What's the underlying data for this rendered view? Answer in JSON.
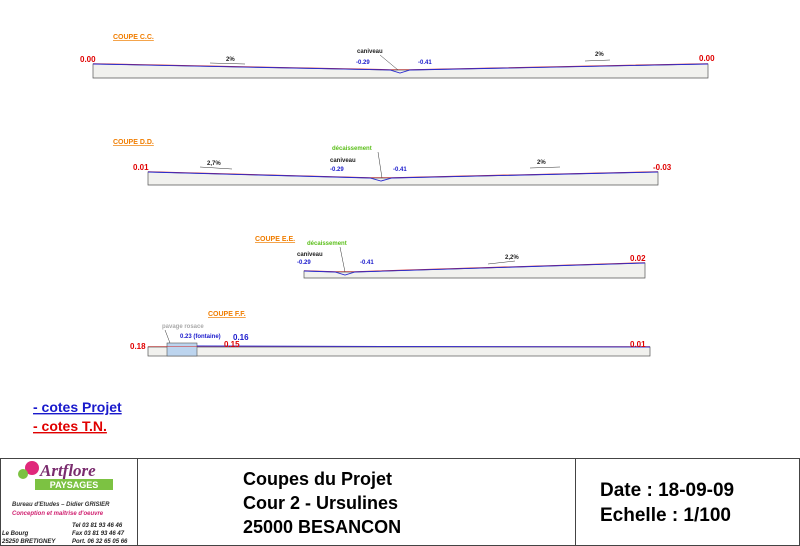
{
  "sections": [
    {
      "title": "COUPE C.C.",
      "left_level": "0.00",
      "right_level": "0.00",
      "slope_left": "2%",
      "slope_right": "2%",
      "caniveau": "caniveau",
      "caniveau_left": "-0.29",
      "caniveau_right": "-0.41"
    },
    {
      "title": "COUPE D.D.",
      "left_level": "0.01",
      "right_level": "-0.03",
      "slope_left": "2,7%",
      "slope_right": "2%",
      "decaissement": "décaissement",
      "caniveau": "caniveau",
      "caniveau_left": "-0.29",
      "caniveau_right": "-0.41"
    },
    {
      "title": "COUPE E.E.",
      "decaissement": "décaissement",
      "caniveau": "caniveau",
      "caniveau_left": "-0.29",
      "caniveau_right": "-0.41",
      "slope_right": "2,2%",
      "right_level": "0.02"
    },
    {
      "title": "COUPE F.F.",
      "pavage": "pavage rosace",
      "fontaine": "0.23 (fontaine)",
      "fontaine_tn": "0.16",
      "left_level": "0.18",
      "left_level_2": "0.15",
      "right_level": "0.01"
    }
  ],
  "legend": {
    "projet": "- cotes Projet",
    "tn": "- cotes T.N."
  },
  "title_block": {
    "logo_name": "Artflore",
    "logo_sub": "PAYSAGES",
    "office": "Bureau d'Etudes – Didier GRISIER",
    "role": "Conception et maîtrise d'oeuvre",
    "tel": "Tel 03 81 93 46 46",
    "fax": "Fax 03 81 93 46 47",
    "port": "Port. 06 32 65 05 66",
    "address_1": "Le Bourg",
    "address_2": "25250 BRETIGNEY",
    "title_1": "Coupes du Projet",
    "title_2": "Cour 2 - Ursulines",
    "title_3": "25000 BESANCON",
    "date": "Date : 18-09-09",
    "scale": "Echelle : 1/100"
  }
}
